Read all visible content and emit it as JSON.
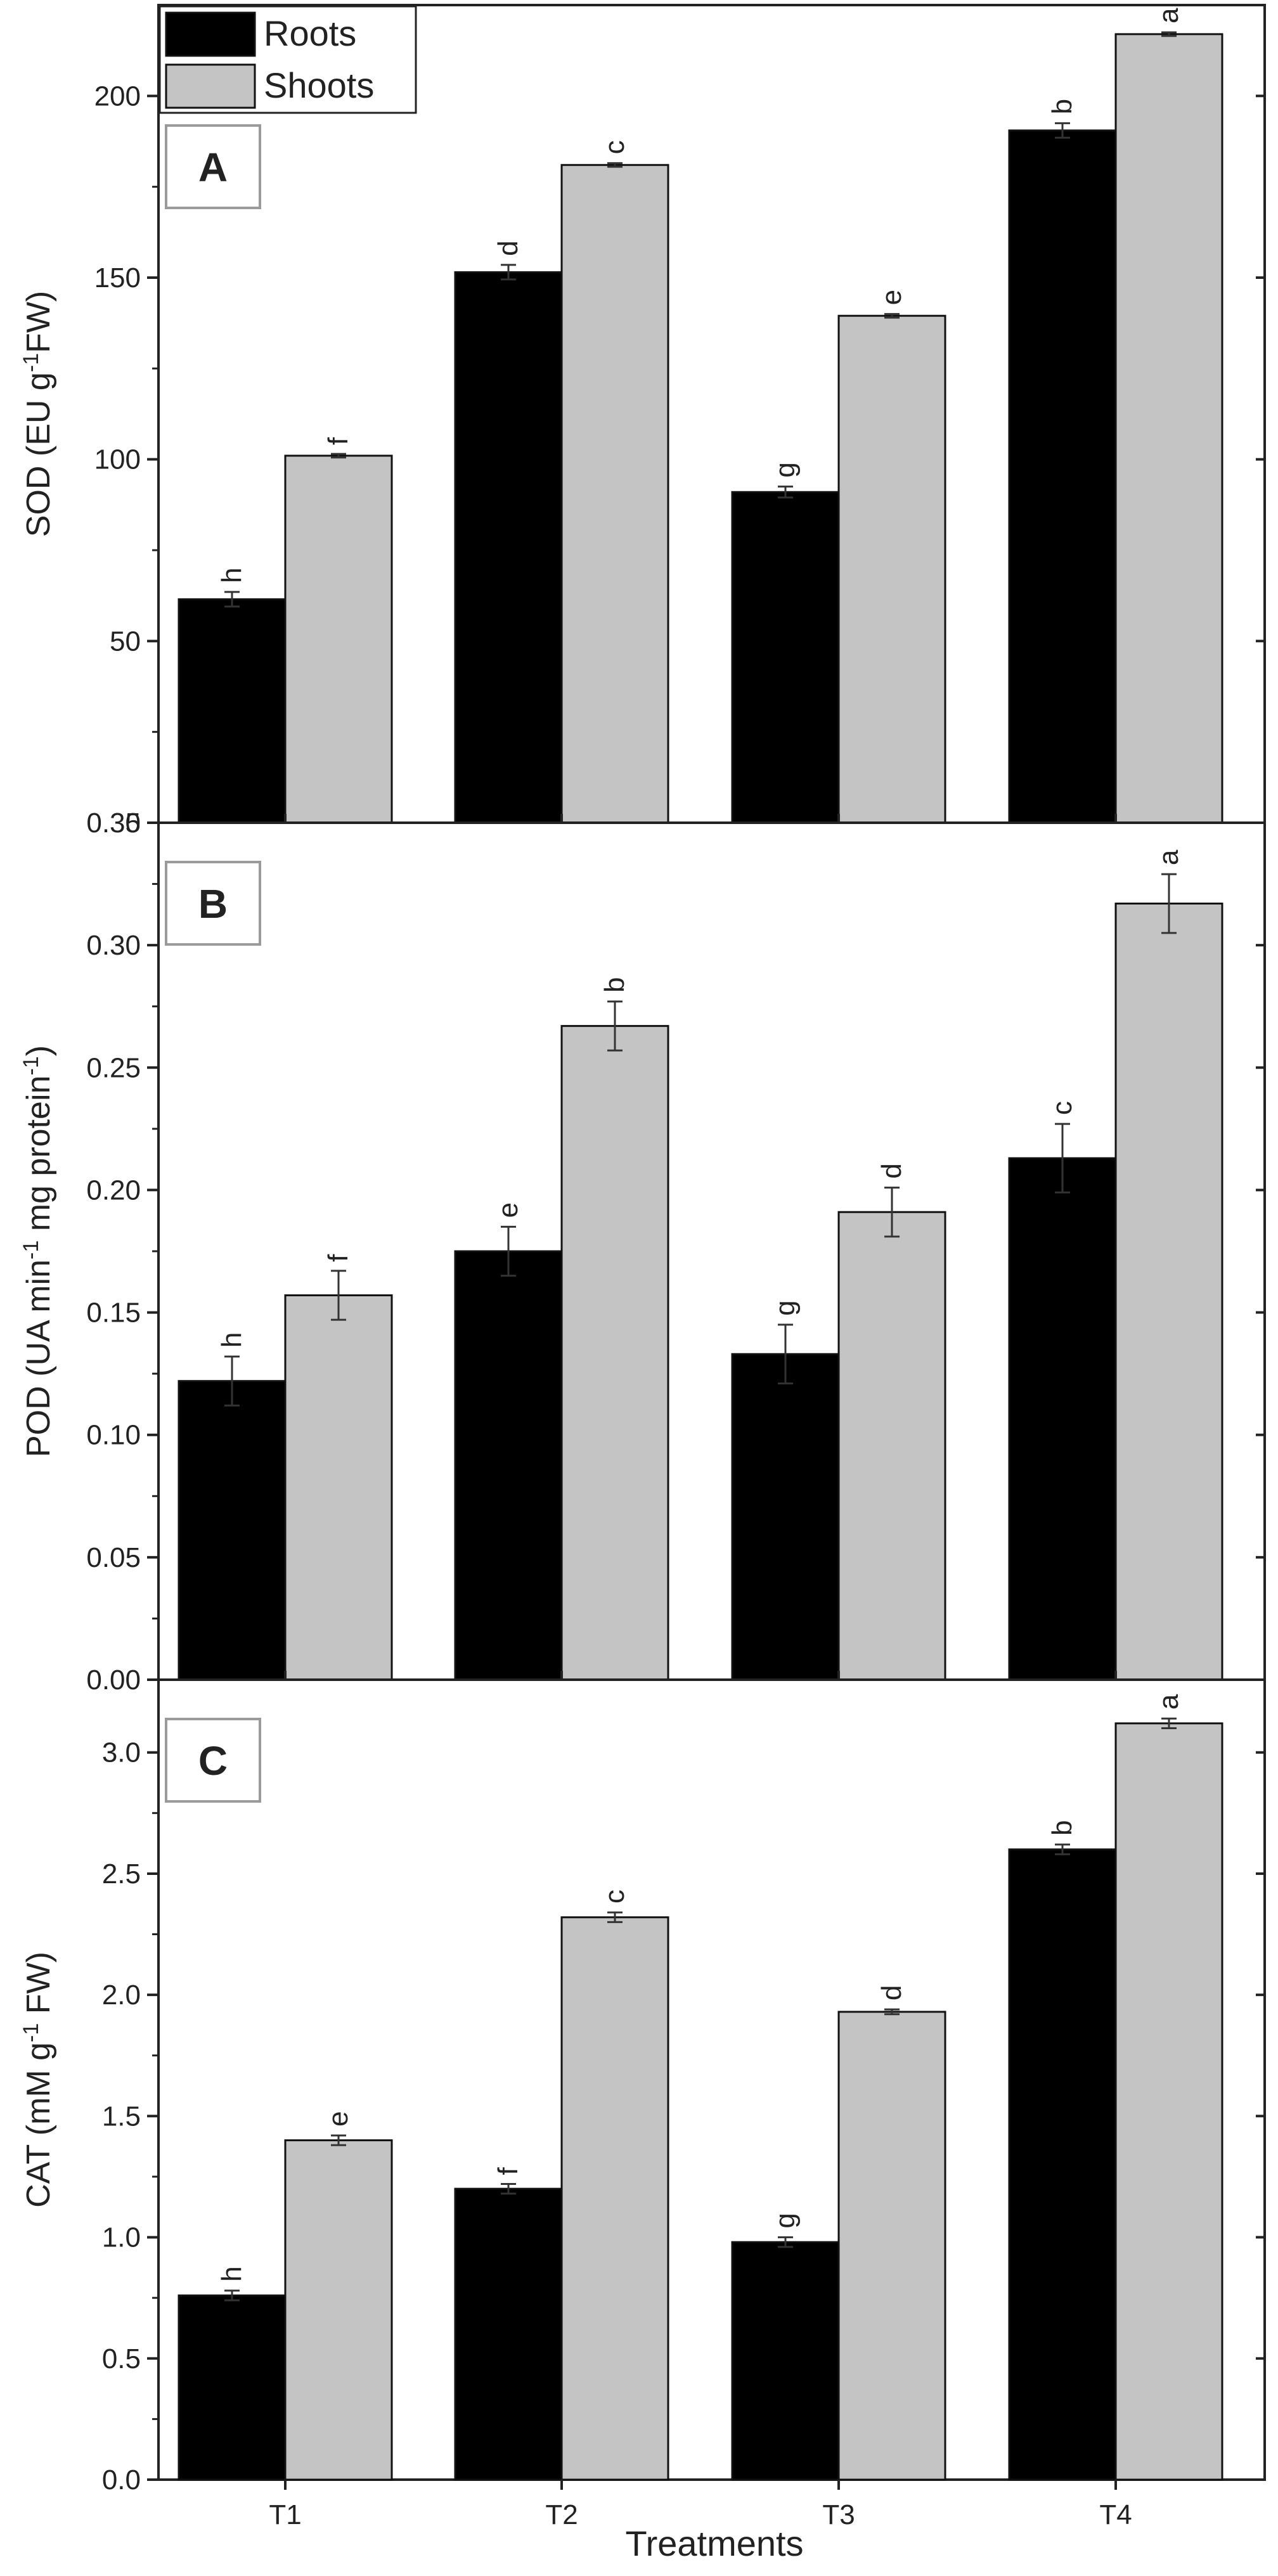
{
  "figure": {
    "x_title": "Treatments",
    "legend": {
      "placement": "top-left",
      "entries": [
        {
          "name": "Roots",
          "color": "#000000"
        },
        {
          "name": "Shoots",
          "color": "#c4c4c4"
        }
      ]
    }
  },
  "chart_data": [
    {
      "type": "bar",
      "panel_label": "A",
      "categories": [
        "T1",
        "T2",
        "T3",
        "T4"
      ],
      "ylabel_main": "SOD (EU g",
      "ylabel_sup": "-1",
      "ylabel_end": "FW)",
      "ylim": [
        0,
        225
      ],
      "yticks": [
        0,
        50,
        100,
        150,
        200
      ],
      "tick_decimals": 0,
      "grid": false,
      "series": [
        {
          "name": "Roots",
          "color": "#000000",
          "values": [
            61.5,
            151.5,
            91.0,
            190.5
          ],
          "errors": [
            2.0,
            2.0,
            1.5,
            2.0
          ],
          "letters": [
            "h",
            "d",
            "g",
            "b"
          ]
        },
        {
          "name": "Shoots",
          "color": "#c4c4c4",
          "values": [
            101.0,
            181.0,
            139.5,
            217.0
          ],
          "errors": [
            0.5,
            0.5,
            0.5,
            0.5
          ],
          "letters": [
            "f",
            "c",
            "e",
            "a"
          ]
        }
      ]
    },
    {
      "type": "bar",
      "panel_label": "B",
      "categories": [
        "T1",
        "T2",
        "T3",
        "T4"
      ],
      "ylabel_main": "POD (UA min",
      "ylabel_sup": "-1",
      "ylabel_mid": " mg protein",
      "ylabel_sup2": "-1",
      "ylabel_end": ")",
      "ylim": [
        0,
        0.35
      ],
      "yticks": [
        0.0,
        0.05,
        0.1,
        0.15,
        0.2,
        0.25,
        0.3,
        0.35
      ],
      "tick_decimals": 2,
      "grid": false,
      "series": [
        {
          "name": "Roots",
          "color": "#000000",
          "values": [
            0.122,
            0.175,
            0.133,
            0.213
          ],
          "errors": [
            0.01,
            0.01,
            0.012,
            0.014
          ],
          "letters": [
            "h",
            "e",
            "g",
            "c"
          ]
        },
        {
          "name": "Shoots",
          "color": "#c4c4c4",
          "values": [
            0.157,
            0.267,
            0.191,
            0.317
          ],
          "errors": [
            0.01,
            0.01,
            0.01,
            0.012
          ],
          "letters": [
            "f",
            "b",
            "d",
            "a"
          ]
        }
      ]
    },
    {
      "type": "bar",
      "panel_label": "C",
      "categories": [
        "T1",
        "T2",
        "T3",
        "T4"
      ],
      "ylabel_main": "CAT (mM g",
      "ylabel_sup": "-1",
      "ylabel_end": " FW)",
      "ylim": [
        0,
        3.3
      ],
      "yticks": [
        0.0,
        0.5,
        1.0,
        1.5,
        2.0,
        2.5,
        3.0
      ],
      "tick_decimals": 1,
      "grid": false,
      "series": [
        {
          "name": "Roots",
          "color": "#000000",
          "values": [
            0.76,
            1.2,
            0.98,
            2.6
          ],
          "errors": [
            0.02,
            0.02,
            0.02,
            0.02
          ],
          "letters": [
            "h",
            "f",
            "g",
            "b"
          ]
        },
        {
          "name": "Shoots",
          "color": "#c4c4c4",
          "values": [
            1.4,
            2.32,
            1.93,
            3.12
          ],
          "errors": [
            0.02,
            0.02,
            0.01,
            0.02
          ],
          "letters": [
            "e",
            "c",
            "d",
            "a"
          ]
        }
      ]
    }
  ]
}
